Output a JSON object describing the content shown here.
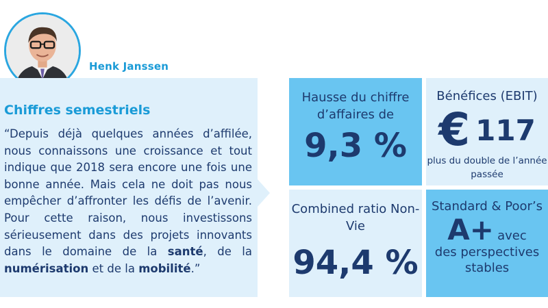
{
  "profile": {
    "name": "Henk Janssen"
  },
  "quote": {
    "title": "Chiffres semestriels",
    "text_1": "“Depuis déjà quelques années d’affilée, nous connaissons une croissance et tout indique que 2018 sera encore une fois une bonne année. Mais cela ne doit pas nous empêcher d’affronter les défis de l’avenir. Pour cette raison, nous investissons sérieusement dans des projets innovants dans le domaine de la ",
    "bold_1": "santé",
    "text_2": ", de la ",
    "bold_2": "numérisation",
    "text_3": " et de la ",
    "bold_3": "mobilité",
    "text_4": ".”"
  },
  "tiles": {
    "revenue": {
      "label": "Hausse du chiffre d’affaires de",
      "value": "9,3 %"
    },
    "ebit": {
      "label": "Bénéfices (EBIT)",
      "currency": "€",
      "value": "117",
      "note": "plus du double de l’année passée"
    },
    "combined": {
      "label": "Combined ratio Non-Vie",
      "value": "94,4 %"
    },
    "rating": {
      "label": "Standard & Poor’s",
      "value": "A+",
      "suffix": "avec",
      "note": "des perspectives stables"
    }
  },
  "colors": {
    "accent": "#1a9bd7",
    "navy": "#1d3a6e",
    "light_panel": "#dff0fb",
    "blue_tile": "#69c5f1"
  }
}
